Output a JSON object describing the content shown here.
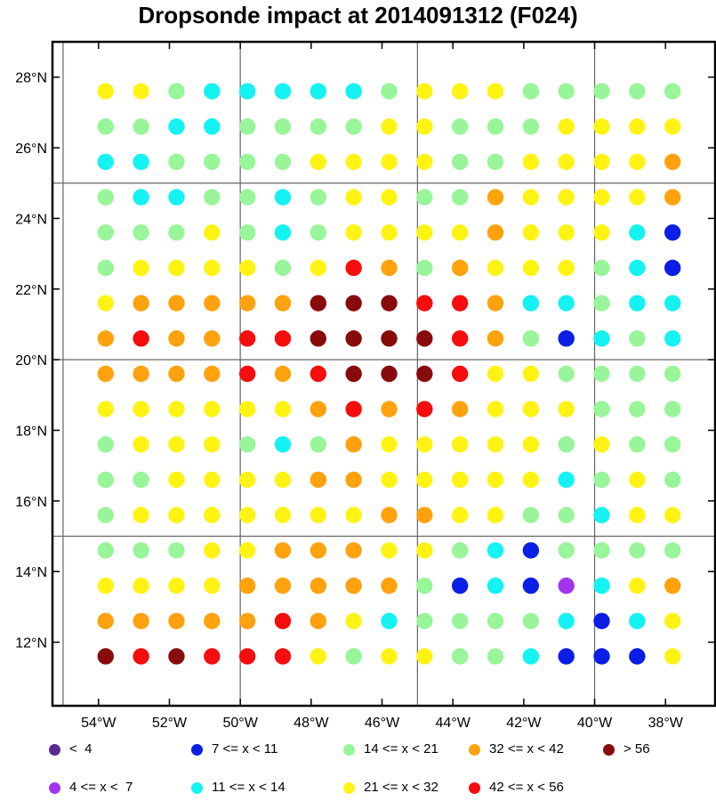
{
  "chart_data": {
    "type": "scatter",
    "title": "Dropsonde impact at 2014091312 (F024)",
    "xlabel": "",
    "ylabel": "",
    "xlim": [
      -55.3,
      -36.6
    ],
    "ylim": [
      10.2,
      29.0
    ],
    "grid": true,
    "grid_lines": {
      "lon": [
        -55,
        -50,
        -45,
        -40
      ],
      "lat": [
        15,
        20,
        25
      ]
    },
    "x_ticks": [
      -54,
      -52,
      -50,
      -48,
      -46,
      -44,
      -42,
      -40,
      -38
    ],
    "x_tick_labels": [
      "54°W",
      "52°W",
      "50°W",
      "48°W",
      "46°W",
      "44°W",
      "42°W",
      "40°W",
      "38°W"
    ],
    "y_ticks": [
      12,
      14,
      16,
      18,
      20,
      22,
      24,
      26,
      28
    ],
    "y_tick_labels": [
      "12°N",
      "14°N",
      "16°N",
      "18°N",
      "20°N",
      "22°N",
      "24°N",
      "26°N",
      "28°N"
    ],
    "lons": [
      -53.8,
      -52.8,
      -51.8,
      -50.8,
      -49.8,
      -48.8,
      -47.8,
      -46.8,
      -45.8,
      -44.8,
      -43.8,
      -42.8,
      -41.8,
      -40.8,
      -39.8,
      -38.8,
      -37.8
    ],
    "lats": [
      27.6,
      26.6,
      25.6,
      24.6,
      23.6,
      22.6,
      21.6,
      20.6,
      19.6,
      18.6,
      17.6,
      16.6,
      15.6,
      14.6,
      13.6,
      12.6,
      11.6
    ],
    "category_grid": [
      [
        "Y",
        "Y",
        "G",
        "C",
        "C",
        "C",
        "C",
        "C",
        "G",
        "Y",
        "Y",
        "Y",
        "G",
        "G",
        "G",
        "G",
        "G"
      ],
      [
        "G",
        "G",
        "C",
        "C",
        "G",
        "G",
        "G",
        "G",
        "Y",
        "Y",
        "G",
        "G",
        "G",
        "Y",
        "Y",
        "Y",
        "Y"
      ],
      [
        "C",
        "C",
        "G",
        "G",
        "G",
        "G",
        "Y",
        "Y",
        "Y",
        "Y",
        "G",
        "G",
        "Y",
        "Y",
        "Y",
        "Y",
        "O"
      ],
      [
        "G",
        "C",
        "C",
        "G",
        "G",
        "C",
        "G",
        "Y",
        "Y",
        "G",
        "G",
        "O",
        "Y",
        "Y",
        "Y",
        "Y",
        "O"
      ],
      [
        "G",
        "G",
        "G",
        "Y",
        "G",
        "C",
        "G",
        "Y",
        "Y",
        "Y",
        "Y",
        "O",
        "Y",
        "Y",
        "Y",
        "C",
        "B"
      ],
      [
        "G",
        "Y",
        "Y",
        "Y",
        "Y",
        "G",
        "Y",
        "R",
        "O",
        "G",
        "O",
        "Y",
        "Y",
        "Y",
        "G",
        "C",
        "B"
      ],
      [
        "Y",
        "O",
        "O",
        "O",
        "O",
        "O",
        "D",
        "D",
        "D",
        "R",
        "R",
        "O",
        "C",
        "C",
        "G",
        "C",
        "C"
      ],
      [
        "O",
        "R",
        "O",
        "O",
        "R",
        "R",
        "D",
        "D",
        "D",
        "D",
        "R",
        "O",
        "G",
        "B",
        "C",
        "G",
        "C"
      ],
      [
        "O",
        "O",
        "O",
        "O",
        "R",
        "O",
        "R",
        "D",
        "D",
        "D",
        "R",
        "Y",
        "Y",
        "G",
        "G",
        "G",
        "G"
      ],
      [
        "Y",
        "Y",
        "Y",
        "Y",
        "Y",
        "Y",
        "O",
        "R",
        "O",
        "R",
        "O",
        "Y",
        "Y",
        "Y",
        "G",
        "G",
        "G"
      ],
      [
        "G",
        "Y",
        "Y",
        "Y",
        "G",
        "C",
        "G",
        "O",
        "Y",
        "Y",
        "Y",
        "Y",
        "Y",
        "G",
        "Y",
        "G",
        "G"
      ],
      [
        "G",
        "G",
        "Y",
        "Y",
        "Y",
        "Y",
        "O",
        "O",
        "Y",
        "Y",
        "Y",
        "Y",
        "Y",
        "C",
        "G",
        "Y",
        "G"
      ],
      [
        "G",
        "Y",
        "Y",
        "Y",
        "Y",
        "Y",
        "Y",
        "Y",
        "O",
        "O",
        "Y",
        "Y",
        "G",
        "G",
        "C",
        "Y",
        "Y"
      ],
      [
        "G",
        "G",
        "G",
        "Y",
        "Y",
        "O",
        "O",
        "O",
        "Y",
        "Y",
        "G",
        "C",
        "B",
        "G",
        "G",
        "G",
        "G"
      ],
      [
        "Y",
        "Y",
        "Y",
        "Y",
        "O",
        "O",
        "O",
        "O",
        "O",
        "G",
        "B",
        "C",
        "B",
        "P",
        "C",
        "Y",
        "O"
      ],
      [
        "O",
        "O",
        "O",
        "O",
        "O",
        "R",
        "O",
        "Y",
        "C",
        "G",
        "G",
        "G",
        "G",
        "C",
        "B",
        "C",
        "Y"
      ],
      [
        "D",
        "R",
        "D",
        "R",
        "R",
        "R",
        "Y",
        "G",
        "Y",
        "Y",
        "G",
        "G",
        "C",
        "B",
        "B",
        "B",
        "Y"
      ]
    ],
    "legend_placement": "bottom",
    "legend": [
      {
        "code": "V",
        "label": "<  4",
        "color": "#5b2c8f"
      },
      {
        "code": "B",
        "label": "7 <= x < 11",
        "color": "#0a1ee6"
      },
      {
        "code": "G",
        "label": "14 <= x < 21",
        "color": "#98f599"
      },
      {
        "code": "O",
        "label": "32 <= x < 42",
        "color": "#ffa20e"
      },
      {
        "code": "D",
        "label": "> 56",
        "color": "#890a0a"
      },
      {
        "code": "P",
        "label": "4 <= x <  7",
        "color": "#a335ee"
      },
      {
        "code": "C",
        "label": "11 <= x < 14",
        "color": "#14f2f2"
      },
      {
        "code": "Y",
        "label": "21 <= x < 32",
        "color": "#fff314"
      },
      {
        "code": "R",
        "label": "42 <= x < 56",
        "color": "#f60d0d"
      }
    ]
  }
}
